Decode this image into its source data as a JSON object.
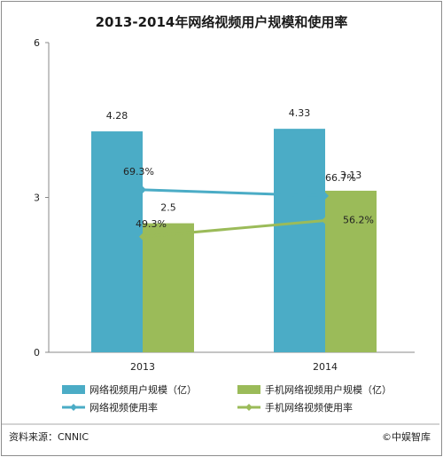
{
  "chart_data": {
    "type": "bar",
    "title": "2013-2014年网络视频用户规模和使用率",
    "categories": [
      "2013",
      "2014"
    ],
    "ylim": [
      0,
      6
    ],
    "y_ticks": [
      "0",
      "3",
      "6"
    ],
    "bar_series": [
      {
        "name": "网络视频用户规模（亿）",
        "values": [
          4.28,
          4.33
        ],
        "labels": [
          "4.28",
          "4.33"
        ],
        "color": "#4bacc6"
      },
      {
        "name": "手机网络视频用户规模（亿）",
        "values": [
          2.5,
          3.13
        ],
        "labels": [
          "2.5",
          "3.13"
        ],
        "color": "#9bbb59"
      }
    ],
    "line_series": [
      {
        "name": "网络视频使用率",
        "values": [
          69.3,
          66.7
        ],
        "labels": [
          "69.3%",
          "66.7%"
        ],
        "color": "#4bacc6"
      },
      {
        "name": "手机网络视频使用率",
        "values": [
          49.3,
          56.2
        ],
        "labels": [
          "49.3%",
          "56.2%"
        ],
        "color": "#9bbb59"
      }
    ],
    "legend_position": "bottom",
    "grid": false
  },
  "footer": {
    "source": "资料来源：CNNIC",
    "brand": "©中娱智库"
  }
}
